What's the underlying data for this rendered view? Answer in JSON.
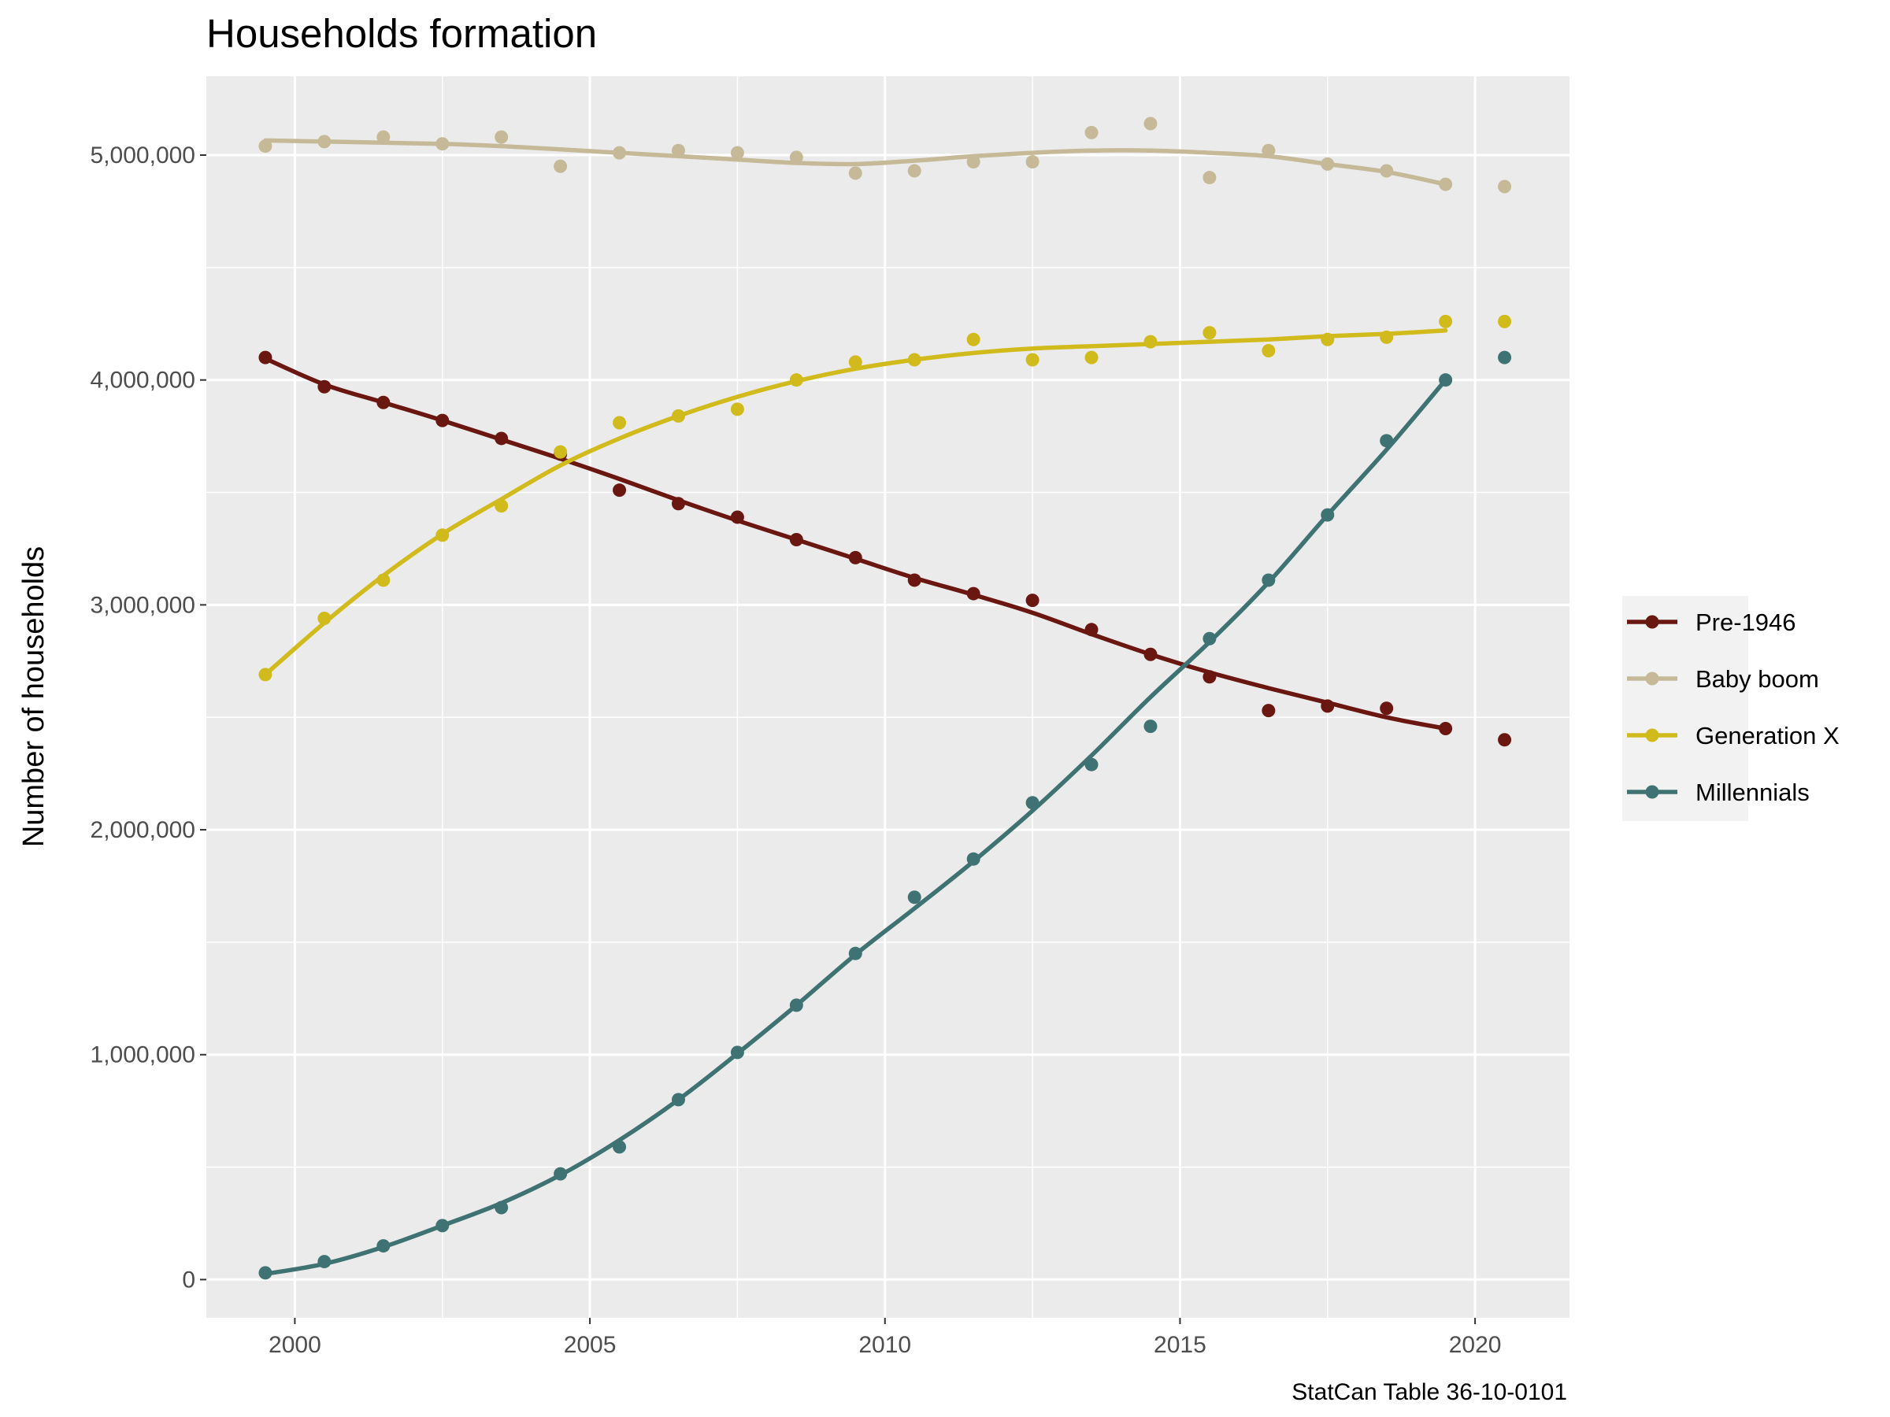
{
  "chart_data": {
    "type": "scatter",
    "title": "Households formation",
    "subtitle": "",
    "xlabel": "",
    "ylabel": "Number of households",
    "caption": "StatCan Table 36-10-0101",
    "xlim": [
      1998.5,
      2021.6
    ],
    "ylim": [
      -170000,
      5350000
    ],
    "x_ticks": [
      2000,
      2005,
      2010,
      2015,
      2020
    ],
    "x_tick_labels": [
      "2000",
      "2005",
      "2010",
      "2015",
      "2020"
    ],
    "y_ticks": [
      0,
      1000000,
      2000000,
      3000000,
      4000000,
      5000000
    ],
    "y_tick_labels": [
      "0",
      "1,000,000",
      "2,000,000",
      "3,000,000",
      "4,000,000",
      "5,000,000"
    ],
    "grid": true,
    "legend_position": "right",
    "panel_background": "#ebebeb",
    "x": [
      1999.5,
      2000.5,
      2001.5,
      2002.5,
      2003.5,
      2004.5,
      2005.5,
      2006.5,
      2007.5,
      2008.5,
      2009.5,
      2010.5,
      2011.5,
      2012.5,
      2013.5,
      2014.5,
      2015.5,
      2016.5,
      2017.5,
      2018.5,
      2019.5,
      2020.5
    ],
    "smooth_note": "",
    "series": [
      {
        "name": "Pre-1946",
        "color": "#6b1711",
        "values": [
          4100000,
          3970000,
          3900000,
          3820000,
          3740000,
          3670000,
          3510000,
          3450000,
          3390000,
          3290000,
          3210000,
          3110000,
          3050000,
          3020000,
          2890000,
          2780000,
          2680000,
          2530000,
          2550000,
          2540000,
          2450000,
          2400000
        ],
        "smooth": [
          4095000,
          3980000,
          3900000,
          3820000,
          3735000,
          3650000,
          3560000,
          3465000,
          3375000,
          3290000,
          3205000,
          3120000,
          3045000,
          2965000,
          2870000,
          2780000,
          2700000,
          2630000,
          2565000,
          2500000,
          2450000
        ]
      },
      {
        "name": "Baby boom",
        "color": "#c5b998",
        "values": [
          5040000,
          5060000,
          5080000,
          5050000,
          5080000,
          4950000,
          5010000,
          5020000,
          5010000,
          4990000,
          4920000,
          4930000,
          4970000,
          4970000,
          5100000,
          5140000,
          4900000,
          5020000,
          4960000,
          4930000,
          4870000,
          4860000
        ],
        "smooth": [
          5065000,
          5060000,
          5055000,
          5050000,
          5040000,
          5025000,
          5010000,
          4995000,
          4980000,
          4965000,
          4960000,
          4975000,
          4995000,
          5010000,
          5020000,
          5020000,
          5010000,
          4995000,
          4960000,
          4925000,
          4870000
        ]
      },
      {
        "name": "Generation X",
        "color": "#d1ba1c",
        "values": [
          2690000,
          2940000,
          3110000,
          3310000,
          3440000,
          3680000,
          3810000,
          3840000,
          3870000,
          4000000,
          4080000,
          4090000,
          4180000,
          4090000,
          4100000,
          4170000,
          4210000,
          4130000,
          4180000,
          4190000,
          4260000,
          4260000
        ],
        "smooth": [
          2690000,
          2920000,
          3130000,
          3315000,
          3470000,
          3620000,
          3740000,
          3840000,
          3925000,
          3995000,
          4050000,
          4090000,
          4120000,
          4140000,
          4150000,
          4160000,
          4170000,
          4180000,
          4195000,
          4205000,
          4220000
        ]
      },
      {
        "name": "Millennials",
        "color": "#3f7373",
        "values": [
          30000,
          80000,
          150000,
          240000,
          320000,
          470000,
          590000,
          800000,
          1010000,
          1220000,
          1450000,
          1700000,
          1870000,
          2120000,
          2290000,
          2460000,
          2850000,
          3110000,
          3400000,
          3730000,
          4000000,
          4100000
        ],
        "smooth": [
          25000,
          70000,
          145000,
          240000,
          340000,
          465000,
          620000,
          800000,
          1005000,
          1220000,
          1445000,
          1650000,
          1860000,
          2085000,
          2330000,
          2590000,
          2835000,
          3100000,
          3400000,
          3690000,
          4000000
        ]
      }
    ]
  }
}
